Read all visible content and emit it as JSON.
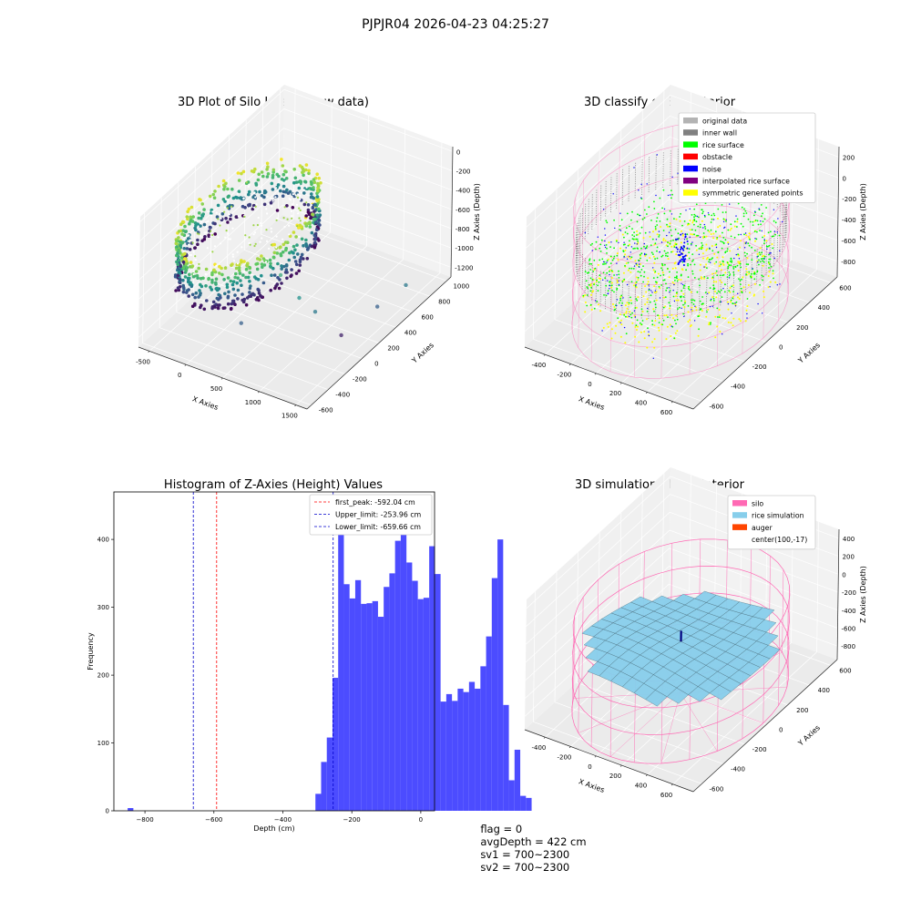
{
  "figure": {
    "title": "PJPJR04 2026-04-23 04:25:27"
  },
  "colors": {
    "viridis": [
      "#440154",
      "#3b528b",
      "#21918c",
      "#5ec962",
      "#fde725"
    ],
    "pane": "#ebebeb",
    "grid": "#ffffff",
    "hist_bar": "#4c4cff",
    "first_peak": "#ff0000",
    "limits": "#0000cc",
    "silo": "#ff69b4",
    "rice_sim": "#87ceeb",
    "auger": "#ff4500",
    "original": "#b3b3b3",
    "inner_wall": "#808080",
    "rice_surface": "#00ff00",
    "obstacle": "#ff0000",
    "noise": "#0000ff",
    "interp": "#800080",
    "symmetric": "#ffff00"
  },
  "chart_data": [
    {
      "type": "scatter",
      "title": "3D Plot of Silo Interior(row data)",
      "xlabel": "X Axies",
      "ylabel": "Y Axies",
      "zlabel": "Z Axies (Depth)",
      "x_ticks": [
        "-500",
        "0",
        "500",
        "1000",
        "1500"
      ],
      "y_ticks": [
        "-600",
        "-400",
        "-200",
        "0",
        "200",
        "400",
        "600",
        "800",
        "1000"
      ],
      "z_ticks": [
        "0",
        "-200",
        "-400",
        "-600",
        "-800",
        "-1000",
        "-1200"
      ],
      "xlim": [
        -650,
        1650
      ],
      "ylim": [
        -650,
        1050
      ],
      "zlim": [
        -1300,
        50
      ],
      "colormap": "viridis",
      "silo_center": [
        100,
        -17
      ],
      "silo_radius": 650,
      "surface_depth_range": [
        -700,
        -200
      ],
      "outliers": [
        {
          "x": 700,
          "y": -150,
          "z": -580,
          "c": 0.6
        },
        {
          "x": 900,
          "y": -100,
          "z": -800,
          "c": 0.5
        },
        {
          "x": 1050,
          "y": -40,
          "z": -950,
          "c": 0.4
        },
        {
          "x": 400,
          "y": -350,
          "z": -1000,
          "c": 0.3
        },
        {
          "x": 1450,
          "y": 350,
          "z": -1100,
          "c": 0.3
        },
        {
          "x": 1550,
          "y": 600,
          "z": -1050,
          "c": 0.4
        },
        {
          "x": 1250,
          "y": 100,
          "z": -1250,
          "c": 0.1
        }
      ]
    },
    {
      "type": "scatter",
      "title": "3D classify of Silo Interior",
      "xlabel": "X Axies",
      "ylabel": "Y Axies",
      "zlabel": "Z Axies (Depth)",
      "x_ticks": [
        "-400",
        "-200",
        "0",
        "200",
        "400",
        "600"
      ],
      "y_ticks": [
        "-600",
        "-400",
        "-200",
        "0",
        "200",
        "400",
        "600"
      ],
      "z_ticks": [
        "200",
        "0",
        "-200",
        "-400",
        "-600",
        "-800"
      ],
      "xlim": [
        -560,
        760
      ],
      "ylim": [
        -680,
        660
      ],
      "zlim": [
        -950,
        300
      ],
      "legend": [
        "original data",
        "inner wall",
        "rice surface",
        "obstacle",
        "noise",
        "interpolated rice surface",
        "symmetric generated points"
      ],
      "legend_colors": [
        "#b3b3b3",
        "#808080",
        "#00ff00",
        "#ff0000",
        "#0000ff",
        "#800080",
        "#ffff00"
      ],
      "legend_loc": "upper right",
      "silo_center": [
        100,
        -17
      ],
      "silo_radius": 650,
      "wall_depth_range": [
        -900,
        200
      ]
    },
    {
      "type": "bar",
      "title": "Histogram of Z-Axies (Height) Values",
      "xlabel": "Depth (cm)",
      "ylabel": "Frequency",
      "bin_start": -850,
      "bin_width": 16.5,
      "values": [
        4,
        0,
        0,
        0,
        0,
        0,
        0,
        0,
        0,
        0,
        0,
        0,
        0,
        0,
        0,
        0,
        0,
        0,
        0,
        0,
        0,
        0,
        0,
        0,
        0,
        0,
        0,
        0,
        0,
        0,
        0,
        0,
        0,
        25,
        72,
        108,
        196,
        440,
        334,
        313,
        340,
        305,
        306,
        309,
        286,
        330,
        350,
        398,
        446,
        366,
        339,
        312,
        314,
        390,
        349,
        161,
        172,
        162,
        180,
        175,
        190,
        180,
        213,
        257,
        343,
        400,
        156,
        45,
        90,
        22,
        19
      ],
      "xlim": [
        -890,
        40
      ],
      "ylim": [
        0,
        470
      ],
      "x_ticks": [
        -800,
        -600,
        -400,
        -200,
        0
      ],
      "y_ticks": [
        0,
        100,
        200,
        300,
        400
      ],
      "first_peak": -592.04,
      "upper_limit": -253.96,
      "lower_limit": -659.66,
      "legend": [
        "first_peak: -592.04 cm",
        "Upper_limit: -253.96 cm",
        "Lower_limit: -659.66 cm"
      ],
      "legend_loc": "upper right"
    },
    {
      "type": "area",
      "title": "3D simulation of Silo Interior",
      "xlabel": "X Axies",
      "ylabel": "Y Axies",
      "zlabel": "Z Axies (Depth)",
      "x_ticks": [
        "-400",
        "-200",
        "0",
        "200",
        "400",
        "600"
      ],
      "y_ticks": [
        "-600",
        "-400",
        "-200",
        "0",
        "200",
        "400",
        "600"
      ],
      "z_ticks": [
        "400",
        "200",
        "0",
        "-200",
        "-400",
        "-600",
        "-800"
      ],
      "xlim": [
        -560,
        760
      ],
      "ylim": [
        -680,
        660
      ],
      "zlim": [
        -950,
        500
      ],
      "legend": [
        "silo",
        "rice simulation",
        "auger",
        "center(100,-17)"
      ],
      "legend_colors": [
        "#ff69b4",
        "#87ceeb",
        "#ff4500",
        ""
      ],
      "legend_loc": "upper right",
      "silo_center": [
        100,
        -17
      ],
      "silo_radius": 650,
      "silo_depth_range": [
        -920,
        0
      ],
      "rice_surface_depth_range": [
        -600,
        -200
      ]
    }
  ],
  "status": {
    "flag": "flag = 0",
    "avg_depth": "avgDepth = 422 cm",
    "sv1": "sv1 = 700~2300",
    "sv2": "sv2 = 700~2300"
  }
}
